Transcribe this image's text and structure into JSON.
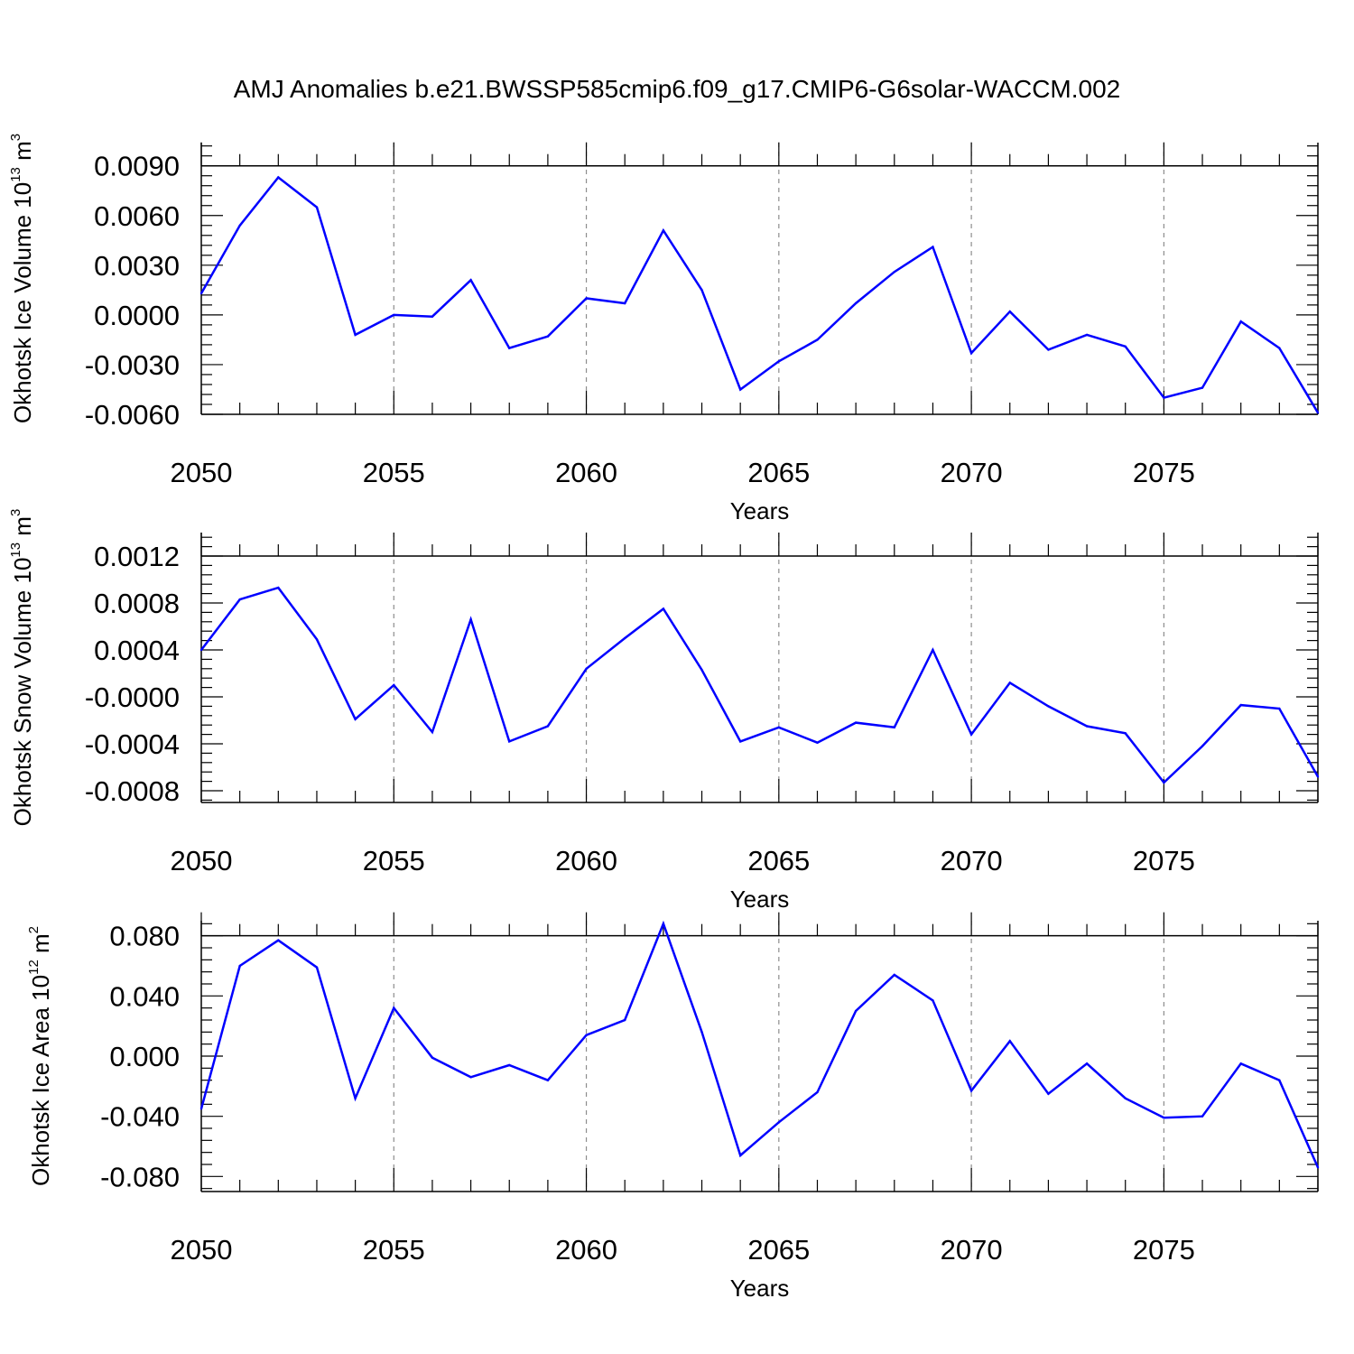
{
  "title": "AMJ Anomalies b.e21.BWSSP585cmip6.f09_g17.CMIP6-G6solar-WACCM.002",
  "colors": {
    "line": "#0000ff",
    "axis": "#000000",
    "grid": "#8c8c8c",
    "background": "#ffffff"
  },
  "chart_data": [
    {
      "type": "line",
      "ylabel": {
        "base": "Okhotsk Ice Volume 10",
        "exp": "13",
        "unit": " m",
        "unit_exp": "3"
      },
      "xlabel": "Years",
      "xlim": [
        2050,
        2079
      ],
      "xticks": [
        2050,
        2055,
        2060,
        2065,
        2070,
        2075
      ],
      "ylim": [
        -0.006,
        0.0104
      ],
      "yticks": [
        -0.006,
        -0.003,
        0.0,
        0.003,
        0.006,
        0.009
      ],
      "ytick_labels": [
        "-0.0060",
        "-0.0030",
        "0.0000",
        "0.0030",
        "0.0060",
        "0.0090"
      ],
      "grid": "vertical dashed at major x ticks",
      "series": [
        {
          "name": "Okhotsk Ice Volume",
          "x": [
            2050,
            2051,
            2052,
            2053,
            2054,
            2055,
            2056,
            2057,
            2058,
            2059,
            2060,
            2061,
            2062,
            2063,
            2064,
            2065,
            2066,
            2067,
            2068,
            2069,
            2070,
            2071,
            2072,
            2073,
            2074,
            2075,
            2076,
            2077,
            2078,
            2079
          ],
          "values": [
            0.0013,
            0.0054,
            0.0083,
            0.0065,
            -0.0012,
            0.0,
            -0.0001,
            0.0021,
            -0.002,
            -0.0013,
            0.001,
            0.0007,
            0.0051,
            0.0015,
            -0.0045,
            -0.0028,
            -0.0015,
            0.0007,
            0.0026,
            0.0041,
            -0.0023,
            0.0002,
            -0.0021,
            -0.0012,
            -0.0019,
            -0.005,
            -0.0044,
            -0.0004,
            -0.002,
            -0.0059
          ]
        }
      ]
    },
    {
      "type": "line",
      "ylabel": {
        "base": "Okhotsk Snow Volume 10",
        "exp": "13",
        "unit": " m",
        "unit_exp": "3"
      },
      "xlabel": "Years",
      "xlim": [
        2050,
        2079
      ],
      "xticks": [
        2050,
        2055,
        2060,
        2065,
        2070,
        2075
      ],
      "ylim": [
        -0.0009,
        0.0014
      ],
      "yticks": [
        -0.0008,
        -0.0004,
        0.0,
        0.0004,
        0.0008,
        0.0012
      ],
      "ytick_labels": [
        "-0.0008",
        "-0.0004",
        "-0.0000",
        "0.0004",
        "0.0008",
        "0.0012"
      ],
      "grid": "vertical dashed at major x ticks",
      "series": [
        {
          "name": "Okhotsk Snow Volume",
          "x": [
            2050,
            2051,
            2052,
            2053,
            2054,
            2055,
            2056,
            2057,
            2058,
            2059,
            2060,
            2061,
            2062,
            2063,
            2064,
            2065,
            2066,
            2067,
            2068,
            2069,
            2070,
            2071,
            2072,
            2073,
            2074,
            2075,
            2076,
            2077,
            2078,
            2079
          ],
          "values": [
            0.0004,
            0.00083,
            0.00093,
            0.00049,
            -0.00019,
            0.0001,
            -0.0003,
            0.00066,
            -0.00038,
            -0.00025,
            0.00024,
            0.0005,
            0.00075,
            0.00023,
            -0.00038,
            -0.00026,
            -0.00039,
            -0.00022,
            -0.00026,
            0.0004,
            -0.00032,
            0.00012,
            -8e-05,
            -0.00025,
            -0.00031,
            -0.00073,
            -0.00042,
            -7e-05,
            -0.0001,
            -0.00068
          ]
        }
      ]
    },
    {
      "type": "line",
      "ylabel": {
        "base": "Okhotsk Ice Area 10",
        "exp": "12",
        "unit": " m",
        "unit_exp": "2"
      },
      "xlabel": "Years",
      "xlim": [
        2050,
        2079
      ],
      "xticks": [
        2050,
        2055,
        2060,
        2065,
        2070,
        2075
      ],
      "ylim": [
        -0.09,
        0.09
      ],
      "yticks": [
        -0.08,
        -0.04,
        0.0,
        0.04,
        0.08
      ],
      "ytick_labels": [
        "-0.080",
        "-0.040",
        "0.000",
        "0.040",
        "0.080"
      ],
      "grid": "vertical dashed at major x ticks",
      "series": [
        {
          "name": "Okhotsk Ice Area",
          "x": [
            2050,
            2051,
            2052,
            2053,
            2054,
            2055,
            2056,
            2057,
            2058,
            2059,
            2060,
            2061,
            2062,
            2063,
            2064,
            2065,
            2066,
            2067,
            2068,
            2069,
            2070,
            2071,
            2072,
            2073,
            2074,
            2075,
            2076,
            2077,
            2078,
            2079
          ],
          "values": [
            -0.035,
            0.06,
            0.077,
            0.059,
            -0.028,
            0.032,
            -0.001,
            -0.014,
            -0.006,
            -0.016,
            0.014,
            0.024,
            0.088,
            0.016,
            -0.066,
            -0.044,
            -0.024,
            0.03,
            0.054,
            0.037,
            -0.023,
            0.01,
            -0.025,
            -0.005,
            -0.028,
            -0.041,
            -0.04,
            -0.005,
            -0.016,
            -0.074
          ]
        }
      ]
    }
  ]
}
